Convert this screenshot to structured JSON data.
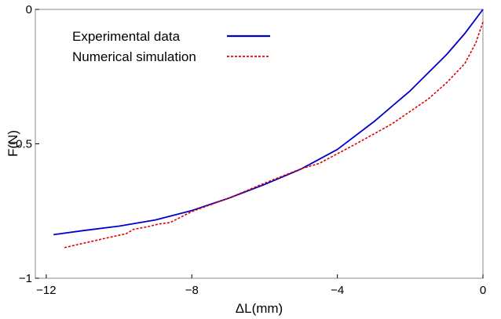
{
  "chart_data": {
    "type": "line",
    "xlabel": "ΔL(mm)",
    "ylabel": "F(N)",
    "xlim": [
      -12.3,
      0
    ],
    "ylim": [
      -1,
      0
    ],
    "xticks": [
      {
        "value": -12,
        "label": "−12"
      },
      {
        "value": -8,
        "label": "−8"
      },
      {
        "value": -4,
        "label": "−4"
      },
      {
        "value": 0,
        "label": "0"
      }
    ],
    "yticks": [
      {
        "value": 0,
        "label": "0"
      },
      {
        "value": -0.5,
        "label": "−0.5"
      },
      {
        "value": -1,
        "label": "−1"
      }
    ],
    "grid": false,
    "legend_position": "top-left",
    "series": [
      {
        "name": "Experimental data",
        "color": "#0000cc",
        "style": "solid",
        "x": [
          -11.8,
          -11.0,
          -10.0,
          -9.0,
          -8.0,
          -7.0,
          -6.0,
          -5.0,
          -4.0,
          -3.0,
          -2.0,
          -1.0,
          -0.5,
          0.0
        ],
        "y": [
          -0.838,
          -0.823,
          -0.806,
          -0.783,
          -0.748,
          -0.703,
          -0.651,
          -0.594,
          -0.521,
          -0.418,
          -0.303,
          -0.168,
          -0.09,
          0.0
        ]
      },
      {
        "name": "Numerical simulation",
        "color": "#dd0000",
        "style": "dotted",
        "x": [
          -11.5,
          -10.5,
          -9.8,
          -9.6,
          -9.2,
          -8.9,
          -8.6,
          -8.0,
          -7.0,
          -6.0,
          -5.0,
          -4.5,
          -3.5,
          -2.5,
          -1.5,
          -1.0,
          -0.5,
          -0.2,
          0.0
        ],
        "y": [
          -0.886,
          -0.855,
          -0.834,
          -0.818,
          -0.808,
          -0.798,
          -0.793,
          -0.752,
          -0.703,
          -0.646,
          -0.593,
          -0.573,
          -0.501,
          -0.426,
          -0.333,
          -0.273,
          -0.202,
          -0.126,
          -0.047
        ]
      }
    ]
  }
}
